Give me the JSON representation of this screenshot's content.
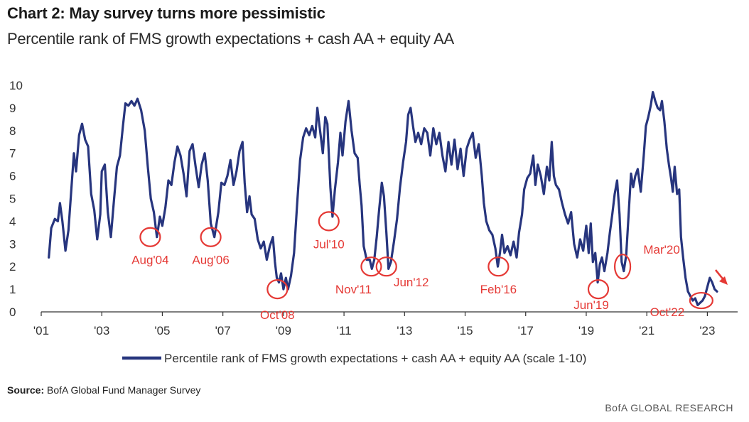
{
  "header": {
    "title": "Chart 2: May survey turns more pessimistic",
    "subtitle": "Percentile rank of FMS growth expectations + cash AA + equity AA"
  },
  "footer": {
    "source_label": "Source:",
    "source_text": "BofA Global Fund Manager Survey",
    "brand": "BofA GLOBAL RESEARCH"
  },
  "colors": {
    "line": "#27357e",
    "annotation": "#e53935",
    "axis": "#333333"
  },
  "chart_data": {
    "type": "line",
    "title": "Chart 2: May survey turns more pessimistic",
    "subtitle": "Percentile rank of FMS growth expectations + cash AA + equity AA",
    "ylim": [
      0,
      10
    ],
    "xlim": [
      2001.0,
      2024.0
    ],
    "y_ticks": [
      "0",
      "1",
      "2",
      "3",
      "4",
      "5",
      "6",
      "7",
      "8",
      "9",
      "10"
    ],
    "x_ticks": [
      "'01",
      "'03",
      "'05",
      "'07",
      "'09",
      "'11",
      "'13",
      "'15",
      "'17",
      "'19",
      "'21",
      "'23"
    ],
    "grid": false,
    "legend_position": "bottom",
    "series": [
      {
        "name": "Percentile rank of FMS growth expectations + cash AA + equity AA (scale 1-10)",
        "points": [
          [
            2001.25,
            2.4
          ],
          [
            2001.33,
            3.7
          ],
          [
            2001.45,
            4.1
          ],
          [
            2001.55,
            4.0
          ],
          [
            2001.62,
            4.8
          ],
          [
            2001.7,
            4.0
          ],
          [
            2001.8,
            2.7
          ],
          [
            2001.9,
            3.6
          ],
          [
            2002.0,
            5.5
          ],
          [
            2002.08,
            7.0
          ],
          [
            2002.15,
            6.2
          ],
          [
            2002.25,
            7.8
          ],
          [
            2002.35,
            8.3
          ],
          [
            2002.45,
            7.6
          ],
          [
            2002.55,
            7.3
          ],
          [
            2002.65,
            5.2
          ],
          [
            2002.75,
            4.5
          ],
          [
            2002.85,
            3.2
          ],
          [
            2002.95,
            4.3
          ],
          [
            2003.0,
            6.2
          ],
          [
            2003.1,
            6.5
          ],
          [
            2003.2,
            4.4
          ],
          [
            2003.3,
            3.3
          ],
          [
            2003.4,
            4.9
          ],
          [
            2003.5,
            6.4
          ],
          [
            2003.6,
            6.9
          ],
          [
            2003.7,
            8.2
          ],
          [
            2003.78,
            9.2
          ],
          [
            2003.88,
            9.1
          ],
          [
            2003.98,
            9.3
          ],
          [
            2004.08,
            9.1
          ],
          [
            2004.18,
            9.4
          ],
          [
            2004.3,
            8.9
          ],
          [
            2004.42,
            8.0
          ],
          [
            2004.52,
            6.4
          ],
          [
            2004.62,
            5.0
          ],
          [
            2004.72,
            4.4
          ],
          [
            2004.82,
            3.3
          ],
          [
            2004.92,
            4.2
          ],
          [
            2005.0,
            3.8
          ],
          [
            2005.1,
            4.6
          ],
          [
            2005.2,
            5.8
          ],
          [
            2005.3,
            5.6
          ],
          [
            2005.4,
            6.6
          ],
          [
            2005.5,
            7.3
          ],
          [
            2005.6,
            6.9
          ],
          [
            2005.7,
            6.1
          ],
          [
            2005.8,
            5.1
          ],
          [
            2005.9,
            7.1
          ],
          [
            2006.0,
            7.4
          ],
          [
            2006.1,
            6.4
          ],
          [
            2006.2,
            5.5
          ],
          [
            2006.3,
            6.5
          ],
          [
            2006.4,
            7.0
          ],
          [
            2006.5,
            5.8
          ],
          [
            2006.6,
            3.9
          ],
          [
            2006.72,
            3.3
          ],
          [
            2006.85,
            4.4
          ],
          [
            2006.95,
            5.7
          ],
          [
            2007.05,
            5.6
          ],
          [
            2007.15,
            6.0
          ],
          [
            2007.25,
            6.7
          ],
          [
            2007.35,
            5.6
          ],
          [
            2007.45,
            6.2
          ],
          [
            2007.55,
            7.1
          ],
          [
            2007.65,
            7.5
          ],
          [
            2007.72,
            5.7
          ],
          [
            2007.8,
            4.4
          ],
          [
            2007.88,
            5.1
          ],
          [
            2007.95,
            4.3
          ],
          [
            2008.05,
            4.1
          ],
          [
            2008.15,
            3.2
          ],
          [
            2008.25,
            2.8
          ],
          [
            2008.35,
            3.1
          ],
          [
            2008.45,
            2.3
          ],
          [
            2008.55,
            2.9
          ],
          [
            2008.65,
            3.3
          ],
          [
            2008.72,
            2.2
          ],
          [
            2008.78,
            1.5
          ],
          [
            2008.85,
            1.3
          ],
          [
            2008.92,
            1.7
          ],
          [
            2009.0,
            1.0
          ],
          [
            2009.08,
            1.5
          ],
          [
            2009.15,
            1.0
          ],
          [
            2009.25,
            1.6
          ],
          [
            2009.35,
            2.6
          ],
          [
            2009.45,
            4.7
          ],
          [
            2009.55,
            6.7
          ],
          [
            2009.65,
            7.7
          ],
          [
            2009.75,
            8.1
          ],
          [
            2009.85,
            7.8
          ],
          [
            2009.95,
            8.2
          ],
          [
            2010.05,
            7.7
          ],
          [
            2010.12,
            9.0
          ],
          [
            2010.2,
            8.1
          ],
          [
            2010.3,
            7.0
          ],
          [
            2010.38,
            8.6
          ],
          [
            2010.45,
            8.3
          ],
          [
            2010.55,
            5.5
          ],
          [
            2010.62,
            4.2
          ],
          [
            2010.7,
            5.4
          ],
          [
            2010.8,
            6.6
          ],
          [
            2010.88,
            7.9
          ],
          [
            2010.95,
            6.9
          ],
          [
            2011.05,
            8.4
          ],
          [
            2011.15,
            9.3
          ],
          [
            2011.25,
            8.0
          ],
          [
            2011.35,
            7.0
          ],
          [
            2011.45,
            6.8
          ],
          [
            2011.52,
            5.6
          ],
          [
            2011.58,
            4.7
          ],
          [
            2011.65,
            2.9
          ],
          [
            2011.75,
            2.3
          ],
          [
            2011.85,
            2.3
          ],
          [
            2011.92,
            1.9
          ],
          [
            2012.0,
            2.3
          ],
          [
            2012.08,
            3.3
          ],
          [
            2012.16,
            4.5
          ],
          [
            2012.25,
            5.7
          ],
          [
            2012.32,
            5.1
          ],
          [
            2012.4,
            3.5
          ],
          [
            2012.47,
            1.9
          ],
          [
            2012.55,
            2.2
          ],
          [
            2012.65,
            3.1
          ],
          [
            2012.75,
            4.1
          ],
          [
            2012.85,
            5.5
          ],
          [
            2012.95,
            6.6
          ],
          [
            2013.05,
            7.5
          ],
          [
            2013.12,
            8.7
          ],
          [
            2013.2,
            9.0
          ],
          [
            2013.28,
            8.2
          ],
          [
            2013.36,
            7.5
          ],
          [
            2013.45,
            7.9
          ],
          [
            2013.55,
            7.4
          ],
          [
            2013.65,
            8.1
          ],
          [
            2013.75,
            7.9
          ],
          [
            2013.85,
            6.9
          ],
          [
            2013.95,
            8.1
          ],
          [
            2014.05,
            7.4
          ],
          [
            2014.15,
            7.9
          ],
          [
            2014.25,
            6.9
          ],
          [
            2014.35,
            6.2
          ],
          [
            2014.45,
            7.5
          ],
          [
            2014.55,
            6.5
          ],
          [
            2014.65,
            7.6
          ],
          [
            2014.75,
            6.3
          ],
          [
            2014.85,
            7.2
          ],
          [
            2014.95,
            6.0
          ],
          [
            2015.05,
            7.2
          ],
          [
            2015.15,
            7.6
          ],
          [
            2015.25,
            7.9
          ],
          [
            2015.35,
            6.8
          ],
          [
            2015.45,
            7.4
          ],
          [
            2015.55,
            6.0
          ],
          [
            2015.62,
            4.8
          ],
          [
            2015.7,
            4.0
          ],
          [
            2015.8,
            3.6
          ],
          [
            2015.9,
            3.4
          ],
          [
            2016.0,
            2.8
          ],
          [
            2016.08,
            2.0
          ],
          [
            2016.15,
            2.6
          ],
          [
            2016.22,
            3.4
          ],
          [
            2016.3,
            2.6
          ],
          [
            2016.4,
            2.9
          ],
          [
            2016.5,
            2.5
          ],
          [
            2016.6,
            3.1
          ],
          [
            2016.7,
            2.4
          ],
          [
            2016.78,
            3.5
          ],
          [
            2016.88,
            4.3
          ],
          [
            2016.95,
            5.4
          ],
          [
            2017.05,
            5.9
          ],
          [
            2017.15,
            6.1
          ],
          [
            2017.25,
            6.9
          ],
          [
            2017.32,
            5.6
          ],
          [
            2017.4,
            6.5
          ],
          [
            2017.5,
            6.0
          ],
          [
            2017.6,
            5.2
          ],
          [
            2017.7,
            6.4
          ],
          [
            2017.78,
            5.8
          ],
          [
            2017.86,
            7.5
          ],
          [
            2017.93,
            6.0
          ],
          [
            2018.0,
            5.6
          ],
          [
            2018.1,
            5.4
          ],
          [
            2018.2,
            4.8
          ],
          [
            2018.3,
            4.3
          ],
          [
            2018.4,
            3.9
          ],
          [
            2018.5,
            4.4
          ],
          [
            2018.6,
            3.0
          ],
          [
            2018.7,
            2.4
          ],
          [
            2018.8,
            3.2
          ],
          [
            2018.9,
            2.7
          ],
          [
            2019.0,
            3.8
          ],
          [
            2019.08,
            2.6
          ],
          [
            2019.15,
            3.9
          ],
          [
            2019.22,
            2.2
          ],
          [
            2019.3,
            2.6
          ],
          [
            2019.38,
            1.3
          ],
          [
            2019.45,
            2.1
          ],
          [
            2019.52,
            2.4
          ],
          [
            2019.6,
            1.8
          ],
          [
            2019.7,
            2.6
          ],
          [
            2019.78,
            3.5
          ],
          [
            2019.86,
            4.3
          ],
          [
            2019.94,
            5.2
          ],
          [
            2020.02,
            5.8
          ],
          [
            2020.1,
            4.3
          ],
          [
            2020.17,
            2.2
          ],
          [
            2020.24,
            1.8
          ],
          [
            2020.32,
            2.5
          ],
          [
            2020.4,
            4.3
          ],
          [
            2020.48,
            6.1
          ],
          [
            2020.55,
            5.5
          ],
          [
            2020.62,
            6.0
          ],
          [
            2020.7,
            6.3
          ],
          [
            2020.8,
            5.3
          ],
          [
            2020.9,
            6.9
          ],
          [
            2020.97,
            8.2
          ],
          [
            2021.05,
            8.6
          ],
          [
            2021.13,
            9.1
          ],
          [
            2021.2,
            9.7
          ],
          [
            2021.28,
            9.3
          ],
          [
            2021.36,
            9.0
          ],
          [
            2021.44,
            8.9
          ],
          [
            2021.5,
            9.3
          ],
          [
            2021.58,
            8.4
          ],
          [
            2021.66,
            7.2
          ],
          [
            2021.73,
            6.5
          ],
          [
            2021.8,
            5.9
          ],
          [
            2021.86,
            5.3
          ],
          [
            2021.92,
            6.4
          ],
          [
            2022.0,
            5.2
          ],
          [
            2022.07,
            5.4
          ],
          [
            2022.13,
            3.3
          ],
          [
            2022.2,
            2.4
          ],
          [
            2022.28,
            1.5
          ],
          [
            2022.36,
            0.9
          ],
          [
            2022.44,
            0.7
          ],
          [
            2022.52,
            0.5
          ],
          [
            2022.6,
            0.6
          ],
          [
            2022.68,
            0.3
          ],
          [
            2022.76,
            0.4
          ],
          [
            2022.84,
            0.5
          ],
          [
            2022.92,
            0.7
          ],
          [
            2023.0,
            1.1
          ],
          [
            2023.08,
            1.5
          ],
          [
            2023.16,
            1.3
          ],
          [
            2023.24,
            1.0
          ],
          [
            2023.32,
            0.9
          ]
        ]
      }
    ],
    "annotations": [
      {
        "label": "Aug'04",
        "x": 2004.6,
        "y": 3.3
      },
      {
        "label": "Aug'06",
        "x": 2006.6,
        "y": 3.3
      },
      {
        "label": "Oct'08",
        "x": 2008.8,
        "y": 1.0
      },
      {
        "label": "Jul'10",
        "x": 2010.5,
        "y": 4.0
      },
      {
        "label": "Nov'11",
        "x": 2011.9,
        "y": 2.0
      },
      {
        "label": "Jun'12",
        "x": 2012.4,
        "y": 2.0
      },
      {
        "label": "Feb'16",
        "x": 2016.1,
        "y": 2.0
      },
      {
        "label": "Jun'19",
        "x": 2019.4,
        "y": 1.0
      },
      {
        "label": "Mar'20",
        "x": 2020.2,
        "y": 2.0
      },
      {
        "label": "Oct'22",
        "x": 2022.8,
        "y": 0.5
      }
    ],
    "trend_arrow": "down"
  }
}
